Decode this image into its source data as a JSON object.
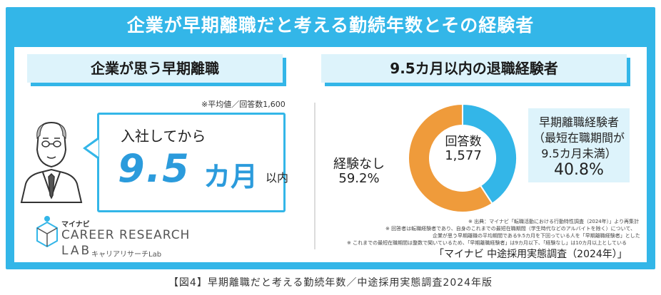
{
  "main_title": "企業が早期離職だと考える勤続年数とその経験者",
  "left": {
    "title": "企業が思う早期離職",
    "note": "※平均値／回答数1,600",
    "bubble_line1": "入社してから",
    "bubble_value": "9.5",
    "bubble_unit": "カ月",
    "bubble_within": "以内"
  },
  "logo": {
    "small": "マイナビ",
    "main": "CAREER RESEARCH",
    "lab": "LAB",
    "kana": "キャリアリサーチLab"
  },
  "right": {
    "title": "9.5カ月以内の退職経験者",
    "center_label": "回答数",
    "center_value": "1,577",
    "label_left": "経験なし",
    "label_left_value": "59.2%",
    "label_right_line1": "早期離職経験者",
    "label_right_line2": "（最短在職期間が",
    "label_right_line3": "9.5カ月未満）",
    "label_right_value": "40.8%",
    "footnotes": [
      "※ 出典：マイナビ「転職活動における行動特性調査（2024年）」より再集計",
      "※ 回答者は転職経験者であり、自身のこれまでの最短在職期間（学生時代などのアルバイトを除く）について、",
      "企業が思う早期離職の平均期間である9.5カ月を下回っている人を「早期離職経験者」とした",
      "※ これまでの最短在職期間は整数で聞いているため、「早期離職経験者」は9カ月以下、「経験なし」は10カ月以上としている"
    ],
    "source": "「マイナビ 中途採用実態調査（2024年）」"
  },
  "caption": "【図4】早期離職だと考える勤続年数／中途採用実態調査2024年版",
  "colors": {
    "frame": "#33b6e8",
    "experienced": "#33b6e8",
    "none": "#ef9b3b",
    "light": "#ddf3fb"
  },
  "chart_data": {
    "type": "pie",
    "donut": true,
    "total_respondents": 1577,
    "slices": [
      {
        "label": "早期離職経験者",
        "value": 40.8,
        "color": "#33b6e8"
      },
      {
        "label": "経験なし",
        "value": 59.2,
        "color": "#ef9b3b"
      }
    ],
    "start": "top",
    "direction": "clockwise",
    "title": "9.5カ月以内の退職経験者"
  }
}
